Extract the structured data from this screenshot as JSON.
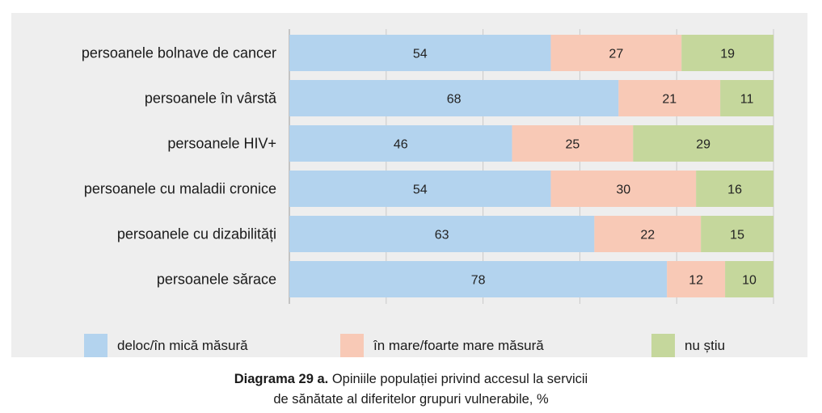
{
  "chart_data": {
    "type": "bar",
    "orientation": "horizontal",
    "stacked": true,
    "categories": [
      "persoanele bolnave de cancer",
      "persoanele în vârstă",
      "persoanele HIV+",
      "persoanele cu maladii cronice",
      "persoanele cu dizabilități",
      "persoanele sărace"
    ],
    "series": [
      {
        "name": "deloc/în mică măsură",
        "color": "#b3d3ee",
        "values": [
          54,
          68,
          46,
          54,
          63,
          78
        ]
      },
      {
        "name": "în mare/foarte mare măsură",
        "color": "#f8c9b6",
        "values": [
          27,
          21,
          25,
          30,
          22,
          12
        ]
      },
      {
        "name": "nu știu",
        "color": "#c5d79c",
        "values": [
          19,
          11,
          29,
          16,
          15,
          10
        ]
      }
    ],
    "xlim": [
      0,
      100
    ],
    "grid": true,
    "legend_position": "bottom"
  },
  "caption": {
    "bold": "Diagrama 29 a.",
    "line1": " Opiniile populației privind accesul la servicii",
    "line2": "de sănătate al diferitelor grupuri vulnerabile, %"
  }
}
